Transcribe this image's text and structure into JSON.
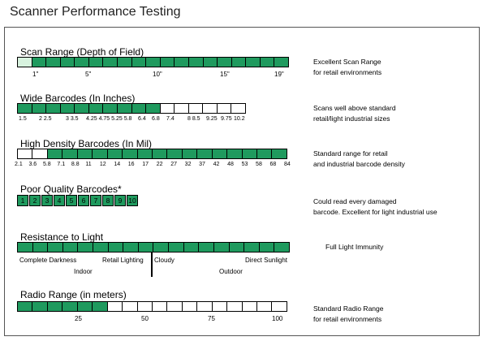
{
  "title": "Scanner Performance Testing",
  "colors": {
    "filled": "#1f9a5e",
    "light": "#d7f2de",
    "empty": "#ffffff"
  },
  "chart_data": [
    {
      "type": "bar",
      "title": "Scan Range (Depth of Field)",
      "segments": 19,
      "filled_from": 2,
      "filled_to": 19,
      "light_segments": [
        1
      ],
      "tick_labels": [
        "1\"",
        "5\"",
        "10\"",
        "15\"",
        "19\""
      ],
      "description": [
        "Excellent Scan Range",
        "for retail environments"
      ]
    },
    {
      "type": "bar",
      "title": "Wide Barcodes (In Inches)",
      "segments": 16,
      "filled_from": 1,
      "filled_to": 10,
      "tick_labels": [
        "1.5",
        "2 2.5",
        "3 3.5",
        "4.25 4.75 5.25 5.8",
        "6.4",
        "6.8",
        "7.4",
        "8 8.5",
        "9.25",
        "9.75",
        "10.2"
      ],
      "description": [
        "Scans well above standard",
        "retail/light industrial sizes"
      ]
    },
    {
      "type": "bar",
      "title": "High Density Barcodes (In Mil)",
      "segments": 18,
      "filled_from": 3,
      "filled_to": 18,
      "tick_labels": [
        "2.1",
        "3.6",
        "5.8",
        "7.1",
        "8.8",
        "11",
        "12",
        "14",
        "16",
        "17",
        "22",
        "27",
        "32",
        "37",
        "42",
        "48",
        "53",
        "58",
        "68",
        "84"
      ],
      "description": [
        "Standard range for retail",
        "and industrial barcode density"
      ]
    },
    {
      "type": "bar",
      "title": "Poor Quality Barcodes*",
      "boxes": [
        "1",
        "2",
        "3",
        "4",
        "5",
        "6",
        "7",
        "8",
        "9",
        "10"
      ],
      "description": [
        "Could read every damaged",
        "barcode. Excellent for light industrial use"
      ]
    },
    {
      "type": "bar",
      "title": "Resistance to Light",
      "segments": 18,
      "filled_from": 1,
      "filled_to": 18,
      "labels_top_row": [
        "Complete Darkness",
        "Retail Lighting",
        "Cloudy",
        "Direct Sunlight"
      ],
      "labels_bottom_row": [
        "Indoor",
        "Outdoor"
      ],
      "description": [
        "Full Light Immunity"
      ]
    },
    {
      "type": "bar",
      "title": "Radio Range (in meters)",
      "segments": 18,
      "filled_from": 1,
      "filled_to": 6,
      "tick_labels": [
        "25",
        "50",
        "75",
        "100"
      ],
      "description": [
        "Standard Radio Range",
        "for retail environments"
      ]
    }
  ]
}
